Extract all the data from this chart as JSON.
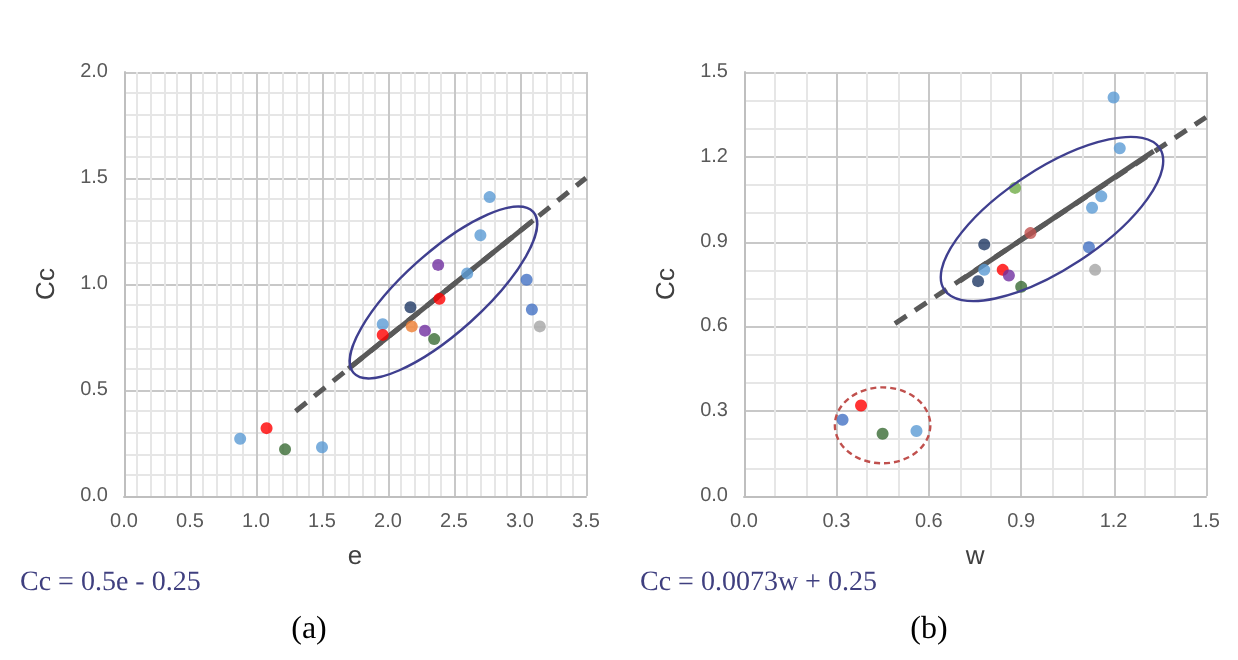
{
  "chart_data": [
    {
      "type": "scatter",
      "xlabel": "e",
      "ylabel": "Cc",
      "xlim": [
        0,
        3.5
      ],
      "xticks": [
        {
          "value": 0,
          "label": "0.0"
        },
        0.5,
        {
          "value": 1,
          "label": "1.0"
        },
        1.5,
        {
          "value": 2,
          "label": "2.0"
        },
        2.5,
        {
          "value": 3,
          "label": "3.0"
        },
        3.5
      ],
      "ylim": [
        0,
        2
      ],
      "yticks": [
        {
          "value": 0,
          "label": "0.0"
        },
        0.5,
        {
          "value": 1,
          "label": "1.0"
        },
        1.5,
        {
          "value": 2,
          "label": "2.0"
        }
      ],
      "grid": true,
      "annotations": [
        "Cc = 0.5e - 0.25",
        "(a)"
      ],
      "series": [
        {
          "marker": "circle",
          "x": [
            0.88,
            1.08,
            1.22,
            1.5,
            1.96,
            1.96,
            2.17,
            2.18,
            2.28,
            2.35,
            2.38,
            2.39,
            2.6,
            2.7,
            2.77,
            3.05,
            3.09,
            3.15
          ],
          "values": [
            0.27,
            0.32,
            0.22,
            0.23,
            0.81,
            0.76,
            0.89,
            0.8,
            0.78,
            0.74,
            1.09,
            0.93,
            1.05,
            1.23,
            1.41,
            1.02,
            0.88,
            0.8
          ],
          "colors": [
            "#5b9bd5",
            "#ff0000",
            "#3a6b35",
            "#5b9bd5",
            "#5b9bd5",
            "#ff0000",
            "#1f3864",
            "#ed7d31",
            "#7030a0",
            "#3a6b35",
            "#7030a0",
            "#ff0000",
            "#5b9bd5",
            "#5b9bd5",
            "#5b9bd5",
            "#4472c4",
            "#4472c4",
            "#a5a5a5"
          ]
        },
        {
          "type": "line",
          "marker": "none",
          "line_style": "dashed",
          "color": "#595959",
          "x": [
            1.3,
            3.5
          ],
          "values": [
            0.4,
            1.5
          ]
        },
        {
          "type": "line",
          "marker": "none",
          "line_style": "solid",
          "color": "#595959",
          "x": [
            1.7,
            3.1
          ],
          "values": [
            0.6,
            1.3
          ]
        }
      ]
    },
    {
      "type": "scatter",
      "xlabel": "w",
      "ylabel": "Cc",
      "xlim": [
        0,
        1.5
      ],
      "xticks": [
        {
          "value": 0,
          "label": "0.0"
        },
        0.3,
        0.6,
        0.9,
        1.2,
        1.5
      ],
      "ylim": [
        0,
        1.5
      ],
      "yticks": [
        {
          "value": 0,
          "label": "0.0"
        },
        0.3,
        0.6,
        0.9,
        1.2,
        1.5
      ],
      "grid": true,
      "annotations": [
        "Cc = 0.0073w + 0.25",
        "(b)"
      ],
      "series": [
        {
          "marker": "circle",
          "x": [
            0.32,
            0.38,
            0.45,
            0.56,
            0.76,
            0.78,
            0.78,
            0.84,
            0.86,
            0.88,
            0.9,
            0.93,
            1.12,
            1.13,
            1.14,
            1.16,
            1.2,
            1.22
          ],
          "values": [
            0.27,
            0.32,
            0.22,
            0.23,
            0.76,
            0.8,
            0.89,
            0.8,
            0.78,
            1.09,
            0.74,
            0.93,
            0.88,
            1.02,
            0.8,
            1.06,
            1.41,
            1.23
          ],
          "colors": [
            "#4472c4",
            "#ff0000",
            "#3a6b35",
            "#5b9bd5",
            "#1f3864",
            "#5b9bd5",
            "#1f3864",
            "#ff0000",
            "#7030a0",
            "#70ad47",
            "#3a6b35",
            "#c0504d",
            "#4472c4",
            "#5b9bd5",
            "#a5a5a5",
            "#5b9bd5",
            "#5b9bd5",
            "#5b9bd5"
          ]
        },
        {
          "type": "line",
          "marker": "none",
          "line_style": "dashed",
          "color": "#595959",
          "x": [
            0.49,
            1.5
          ],
          "values": [
            0.61,
            1.34
          ]
        },
        {
          "type": "line",
          "marker": "none",
          "line_style": "solid",
          "color": "#595959",
          "x": [
            0.7,
            1.33
          ],
          "values": [
            0.76,
            1.22
          ]
        }
      ]
    }
  ]
}
